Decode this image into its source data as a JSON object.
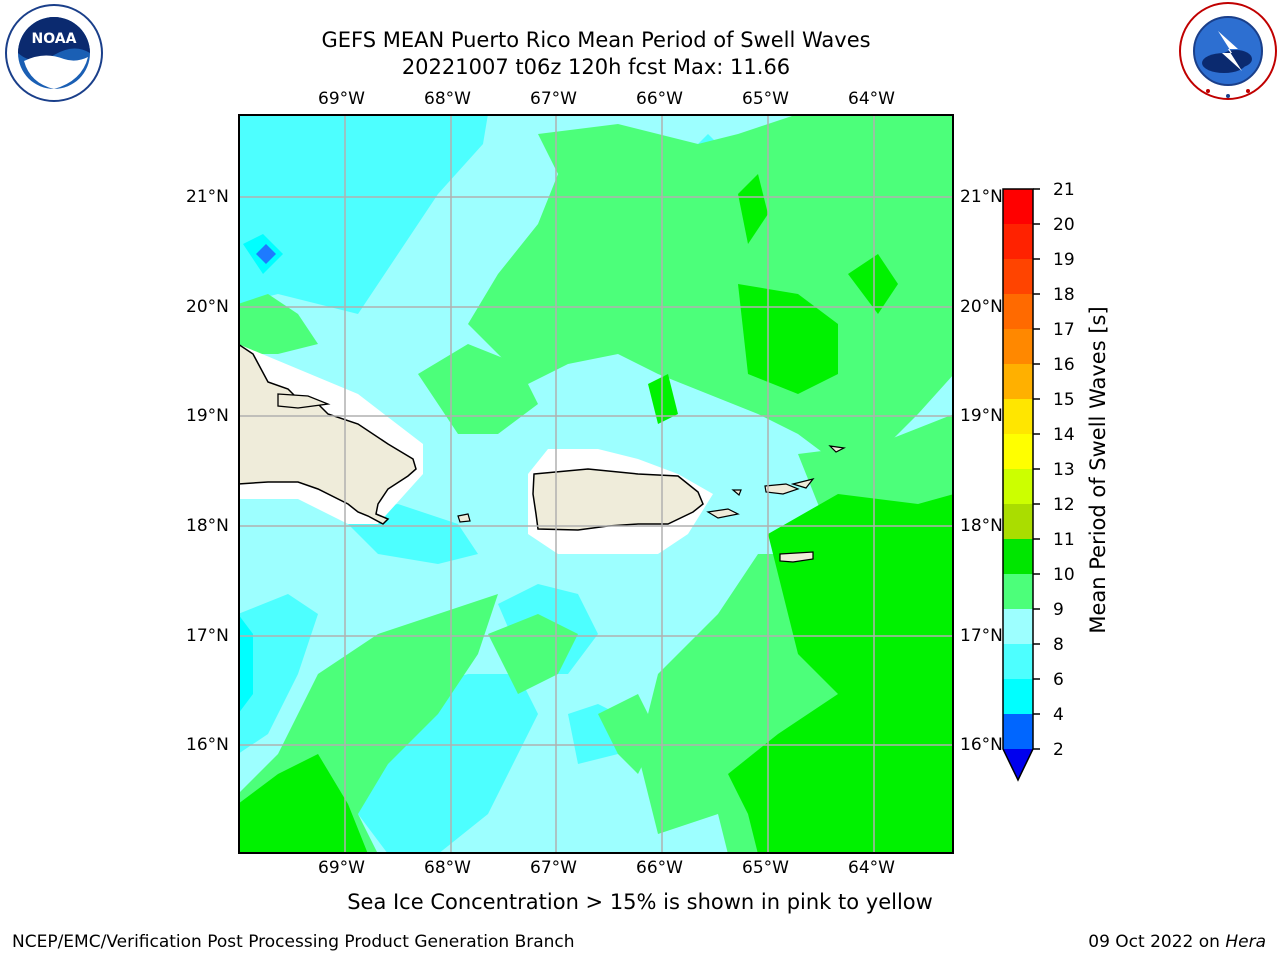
{
  "header": {
    "title_line1": "GEFS MEAN Puerto Rico Mean Period of Swell Waves",
    "title_line2": "20221007 t06z 120h fcst   Max: 11.66"
  },
  "logos": {
    "left": {
      "text": "NOAA",
      "icon": "noaa-logo-icon",
      "ring_text": "NATIONAL OCEANIC AND ATMOSPHERIC ADMINISTRATION · U.S. DEPARTMENT OF COMMERCE"
    },
    "right": {
      "icon": "nws-logo-icon",
      "ring_text": "NATIONAL WEATHER SERVICE"
    }
  },
  "axes": {
    "longitudes": [
      "69°W",
      "68°W",
      "67°W",
      "66°W",
      "65°W",
      "64°W"
    ],
    "latitudes": [
      "21°N",
      "20°N",
      "19°N",
      "18°N",
      "17°N",
      "16°N"
    ]
  },
  "map": {
    "variable": "Mean Period of Swell Waves",
    "max": 11.66,
    "colors": {
      "band_4_6": "#00ffff",
      "band_6_8": "#4dffff",
      "band_8_9": "#9dffff",
      "band_9_10": "#4cff7a",
      "band_10_11": "#00f200",
      "land": "#efecda",
      "grid": "#b0b0b0"
    }
  },
  "colorbar": {
    "title": "Mean Period of Swell Waves [s]",
    "ticks": [
      "21",
      "20",
      "19",
      "18",
      "17",
      "16",
      "15",
      "14",
      "13",
      "12",
      "11",
      "10",
      "9",
      "8",
      "6",
      "4",
      "2"
    ],
    "colors": [
      "#0000ee",
      "#0066ff",
      "#00ccff",
      "#00ffff",
      "#4dffff",
      "#9dffff",
      "#4cff7a",
      "#00e600",
      "#66dd00",
      "#aadd00",
      "#ccff00",
      "#ffff00",
      "#ffe600",
      "#ffcc00",
      "#ffb000",
      "#ff8800",
      "#ff6a00",
      "#ff4400",
      "#ff2200",
      "#ff0000"
    ]
  },
  "footer": {
    "ice_note": "Sea Ice Concentration > 15% is shown in pink to yellow",
    "left": "NCEP/EMC/Verification Post Processing Product Generation Branch",
    "right_date": "09 Oct 2022 on ",
    "right_machine": "Hera"
  }
}
